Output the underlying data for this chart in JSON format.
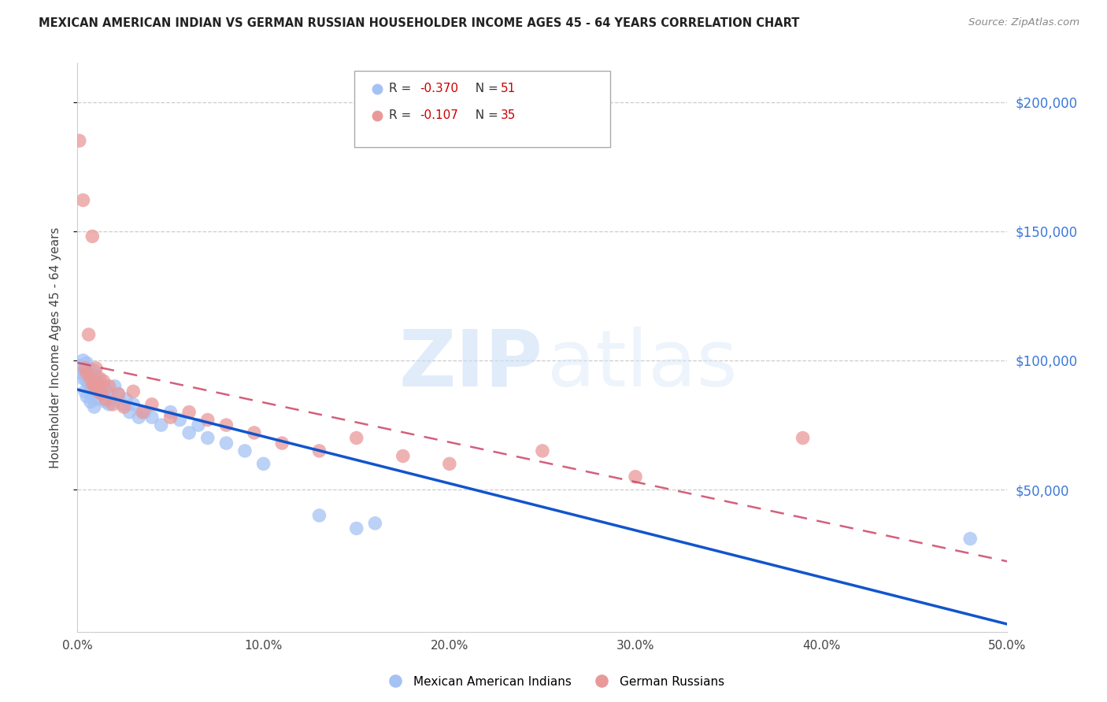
{
  "title": "MEXICAN AMERICAN INDIAN VS GERMAN RUSSIAN HOUSEHOLDER INCOME AGES 45 - 64 YEARS CORRELATION CHART",
  "source": "Source: ZipAtlas.com",
  "ylabel": "Householder Income Ages 45 - 64 years",
  "xlabel_ticks": [
    "0.0%",
    "10.0%",
    "20.0%",
    "30.0%",
    "40.0%",
    "50.0%"
  ],
  "xlabel_vals": [
    0.0,
    0.1,
    0.2,
    0.3,
    0.4,
    0.5
  ],
  "ylabel_ticks": [
    "$50,000",
    "$100,000",
    "$150,000",
    "$200,000"
  ],
  "ylabel_vals": [
    50000,
    100000,
    150000,
    200000
  ],
  "xlim": [
    0.0,
    0.5
  ],
  "ylim": [
    -5000,
    215000
  ],
  "blue_R": "-0.370",
  "blue_N": "51",
  "pink_R": "-0.107",
  "pink_N": "35",
  "blue_color": "#a4c2f4",
  "pink_color": "#ea9999",
  "blue_line_color": "#1155cc",
  "pink_line_color": "#cc4466",
  "legend_blue_label": "Mexican American Indians",
  "legend_pink_label": "German Russians",
  "watermark_zip": "ZIP",
  "watermark_atlas": "atlas",
  "blue_x": [
    0.001,
    0.002,
    0.003,
    0.003,
    0.004,
    0.004,
    0.005,
    0.005,
    0.005,
    0.006,
    0.006,
    0.007,
    0.007,
    0.007,
    0.008,
    0.008,
    0.009,
    0.009,
    0.01,
    0.01,
    0.011,
    0.011,
    0.012,
    0.013,
    0.014,
    0.015,
    0.016,
    0.017,
    0.018,
    0.02,
    0.022,
    0.024,
    0.026,
    0.028,
    0.03,
    0.033,
    0.036,
    0.04,
    0.045,
    0.05,
    0.055,
    0.06,
    0.065,
    0.07,
    0.08,
    0.09,
    0.1,
    0.13,
    0.15,
    0.48,
    0.16
  ],
  "blue_y": [
    98000,
    95000,
    100000,
    93000,
    96000,
    88000,
    99000,
    92000,
    86000,
    97000,
    91000,
    95000,
    89000,
    84000,
    93000,
    87000,
    96000,
    82000,
    94000,
    88000,
    91000,
    85000,
    89000,
    87000,
    90000,
    84000,
    88000,
    83000,
    85000,
    90000,
    87000,
    83000,
    85000,
    80000,
    83000,
    78000,
    80000,
    78000,
    75000,
    80000,
    77000,
    72000,
    75000,
    70000,
    68000,
    65000,
    60000,
    40000,
    35000,
    31000,
    37000
  ],
  "pink_x": [
    0.001,
    0.003,
    0.004,
    0.005,
    0.006,
    0.007,
    0.008,
    0.008,
    0.009,
    0.01,
    0.011,
    0.012,
    0.013,
    0.014,
    0.015,
    0.017,
    0.019,
    0.022,
    0.025,
    0.03,
    0.035,
    0.04,
    0.05,
    0.06,
    0.07,
    0.08,
    0.095,
    0.11,
    0.13,
    0.15,
    0.175,
    0.2,
    0.25,
    0.3,
    0.39
  ],
  "pink_y": [
    185000,
    162000,
    97000,
    95000,
    110000,
    93000,
    91000,
    148000,
    90000,
    97000,
    88000,
    93000,
    87000,
    92000,
    85000,
    90000,
    83000,
    87000,
    82000,
    88000,
    80000,
    83000,
    78000,
    80000,
    77000,
    75000,
    72000,
    68000,
    65000,
    70000,
    63000,
    60000,
    65000,
    55000,
    70000
  ]
}
